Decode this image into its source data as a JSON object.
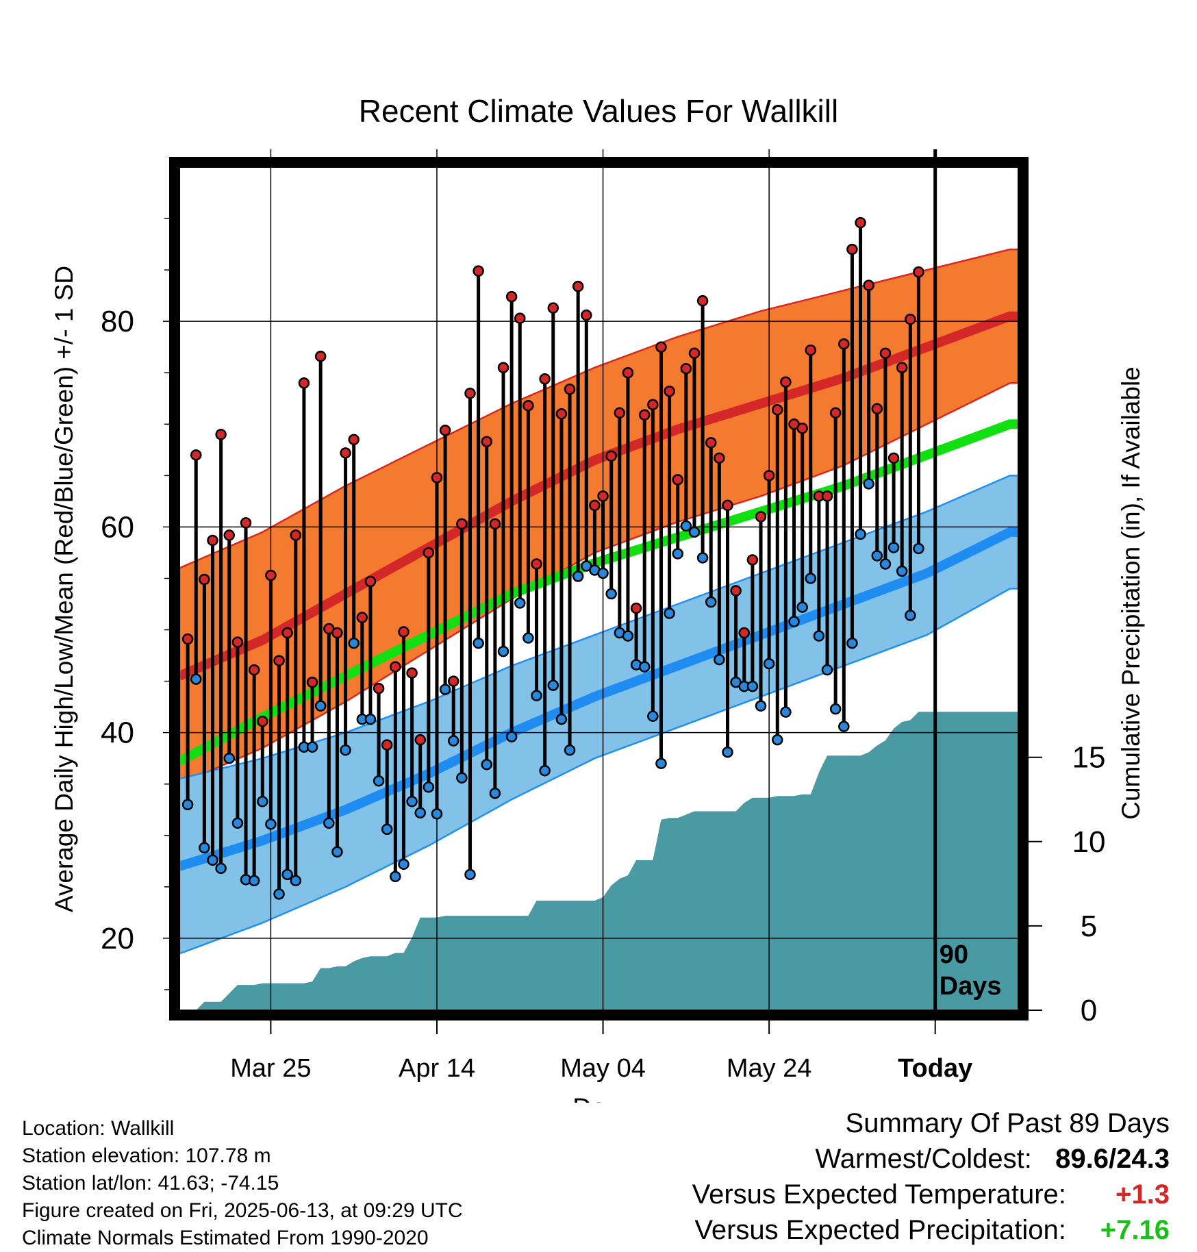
{
  "chart_data": {
    "type": "line",
    "title": "Recent Climate Values For Wallkill",
    "xlabel": "Day",
    "ylabel": "Average Daily High/Low/Mean (Red/Blue/Green) +/- 1 SD",
    "ylabel_right": "Cumulative Precipitation (in), If Available",
    "x_ticks": [
      "Mar 25",
      "Apr 14",
      "May 04",
      "May 24",
      "Today"
    ],
    "x_tick_days": [
      11,
      31,
      51,
      71,
      91
    ],
    "x_range_days": [
      0,
      101
    ],
    "ylim": [
      13,
      95
    ],
    "y_ticks": [
      20,
      40,
      60,
      80
    ],
    "y2lim": [
      0,
      50
    ],
    "y2_ticks": [
      0,
      5,
      10,
      15
    ],
    "today_label": "90 Days",
    "grid": true,
    "colors": {
      "high_band": "#f47a30",
      "high_band_edge": "#d62a20",
      "high_mean": "#d42828",
      "low_band": "#82c1e8",
      "low_band_edge": "#2090f0",
      "low_mean": "#1e8cf0",
      "mean_line": "#10e010",
      "precip": "#4a9aa4",
      "high_dot": "#d42828",
      "low_dot": "#2a88dc"
    },
    "normals": {
      "days": [
        0,
        10,
        20,
        30,
        40,
        50,
        60,
        70,
        80,
        90,
        100
      ],
      "high": [
        45.5,
        49.0,
        53.5,
        58.0,
        62.5,
        66.5,
        69.5,
        72.0,
        74.5,
        77.5,
        80.5
      ],
      "high_sd": [
        10.5,
        10.5,
        10.5,
        10.0,
        9.5,
        9.0,
        9.0,
        9.0,
        8.5,
        7.5,
        6.5
      ],
      "mean": [
        37.2,
        41.5,
        45.5,
        49.5,
        53.5,
        56.5,
        59.0,
        61.5,
        64.0,
        67.0,
        70.0
      ],
      "low": [
        27.0,
        29.5,
        32.5,
        36.0,
        40.0,
        43.5,
        46.5,
        49.5,
        52.5,
        55.5,
        59.5
      ],
      "low_sd": [
        8.5,
        8.0,
        7.5,
        7.0,
        6.5,
        6.0,
        6.0,
        6.0,
        6.0,
        6.0,
        5.5
      ]
    },
    "series": [
      {
        "name": "High",
        "values": [
          49.1,
          67.0,
          54.9,
          58.7,
          69.0,
          59.2,
          48.8,
          60.4,
          46.1,
          41.1,
          55.3,
          47.0,
          49.7,
          59.2,
          74.0,
          44.9,
          76.6,
          50.1,
          49.7,
          67.2,
          68.5,
          51.2,
          54.7,
          44.3,
          38.8,
          46.4,
          49.8,
          45.8,
          39.3,
          57.5,
          64.8,
          69.4,
          45.0,
          60.3,
          73.0,
          84.9,
          68.3,
          60.3,
          75.5,
          82.4,
          80.3,
          71.8,
          56.4,
          74.4,
          81.3,
          71.0,
          73.4,
          83.4,
          80.6,
          62.1,
          63.0,
          66.9,
          71.1,
          75.0,
          52.1,
          70.9,
          71.9,
          77.5,
          73.2,
          64.6,
          75.4,
          76.9,
          82.0,
          68.2,
          66.7,
          62.1,
          53.8,
          49.7,
          56.8,
          61.0,
          65.0,
          71.4,
          74.1,
          70.0,
          69.6,
          77.2,
          63.0,
          63.0,
          71.1,
          77.8,
          87.0,
          89.6,
          83.5,
          71.5,
          76.9,
          66.7,
          75.5,
          80.2,
          84.8
        ]
      },
      {
        "name": "Low",
        "values": [
          33.0,
          45.2,
          28.8,
          27.6,
          26.8,
          37.5,
          31.2,
          25.7,
          25.6,
          33.3,
          31.1,
          24.3,
          26.2,
          25.6,
          38.6,
          38.6,
          42.6,
          31.2,
          28.4,
          38.3,
          48.7,
          41.3,
          41.3,
          35.3,
          30.6,
          26.0,
          27.2,
          33.3,
          32.2,
          34.7,
          32.1,
          44.2,
          39.2,
          35.6,
          26.2,
          48.7,
          36.9,
          34.1,
          47.9,
          39.6,
          52.6,
          49.2,
          43.6,
          36.3,
          44.6,
          41.3,
          38.3,
          55.2,
          56.2,
          55.8,
          55.5,
          53.5,
          49.7,
          49.4,
          46.6,
          46.4,
          41.6,
          37.0,
          51.6,
          57.4,
          60.1,
          59.5,
          57.0,
          52.7,
          47.1,
          38.1,
          44.9,
          44.5,
          44.5,
          42.6,
          46.7,
          39.3,
          42.0,
          50.8,
          52.2,
          55.0,
          49.4,
          46.1,
          42.3,
          40.6,
          48.7,
          59.3,
          64.2,
          57.2,
          56.4,
          58.0,
          55.7,
          51.4,
          57.9
        ]
      },
      {
        "name": "Cumulative Precipitation",
        "values": [
          0,
          0,
          0.5,
          0.5,
          0.5,
          1.0,
          1.5,
          1.5,
          1.5,
          1.6,
          1.6,
          1.6,
          1.6,
          1.6,
          1.6,
          1.7,
          2.5,
          2.5,
          2.6,
          2.6,
          2.9,
          3.1,
          3.2,
          3.2,
          3.2,
          3.4,
          3.4,
          4.3,
          5.5,
          5.5,
          5.5,
          5.6,
          5.6,
          5.6,
          5.6,
          5.6,
          5.6,
          5.6,
          5.6,
          5.6,
          5.6,
          5.6,
          6.5,
          6.5,
          6.5,
          6.5,
          6.5,
          6.5,
          6.5,
          6.5,
          6.7,
          7.4,
          7.8,
          8.0,
          8.9,
          8.9,
          8.9,
          11.3,
          11.4,
          11.4,
          11.6,
          11.8,
          11.8,
          11.8,
          11.8,
          11.8,
          11.8,
          12.3,
          12.6,
          12.6,
          12.6,
          12.7,
          12.7,
          12.7,
          12.8,
          12.8,
          14.1,
          15.1,
          15.1,
          15.1,
          15.1,
          15.1,
          15.3,
          15.7,
          16.0,
          16.7,
          17.1,
          17.2,
          17.7
        ]
      }
    ]
  },
  "footer": {
    "location": "Location: Wallkill",
    "elevation": "Station elevation: 107.78 m",
    "latlon": "Station lat/lon: 41.63; -74.15",
    "created": "Figure created on Fri, 2025-06-13, at 09:29 UTC",
    "normals_note": "Climate Normals Estimated From 1990-2020"
  },
  "summary": {
    "heading": "Summary Of Past 89 Days",
    "warmest_label": "Warmest/Coldest:",
    "warmest_value": "89.6/24.3",
    "temp_label": "Versus Expected Temperature:",
    "temp_value": "+1.3",
    "precip_label": "Versus Expected Precipitation:",
    "precip_value": "+7.16",
    "temp_color": "#d42828",
    "precip_color": "#18c018"
  }
}
